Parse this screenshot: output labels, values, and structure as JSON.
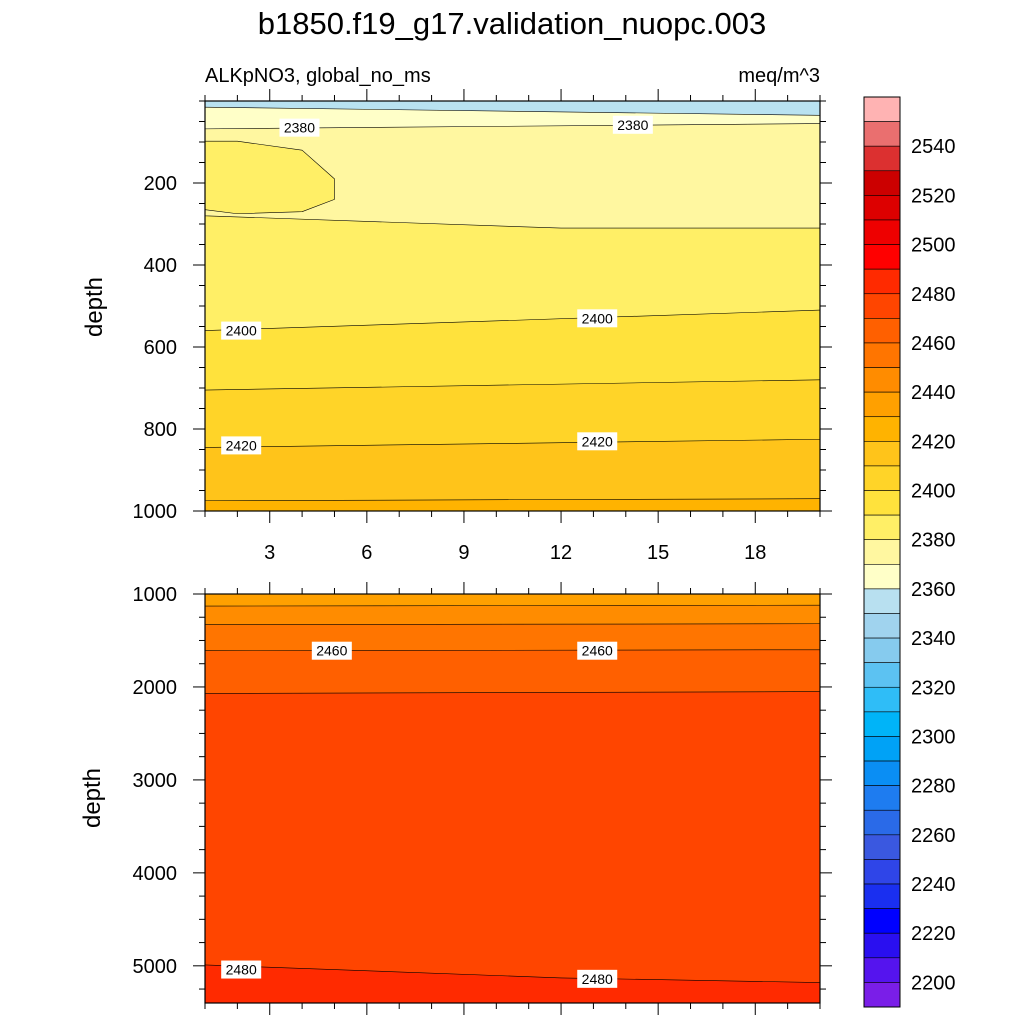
{
  "title": "b1850.f19_g17.validation_nuopc.003",
  "subtitle_left": "ALKpNO3, global_no_ms",
  "subtitle_right": "meq/m^3",
  "chart_data": [
    {
      "type": "heatmap",
      "panel": "upper",
      "ylabel": "depth",
      "xlabel": "",
      "xlim": [
        1,
        20
      ],
      "ylim": [
        1000,
        0
      ],
      "xticks": [
        3,
        6,
        9,
        12,
        15,
        18
      ],
      "yticks": [
        200,
        400,
        600,
        800,
        1000
      ],
      "contour_lines": [
        {
          "level": 2360,
          "x": [
            1,
            20
          ],
          "y": [
            15,
            35
          ]
        },
        {
          "level": 2380,
          "x": [
            1,
            20
          ],
          "y": [
            68,
            55
          ]
        },
        {
          "level": 2390,
          "x": [
            1,
            2,
            4,
            5,
            5,
            4,
            2,
            1,
            1,
            12,
            20
          ],
          "y": [
            98,
            98,
            120,
            190,
            240,
            270,
            275,
            265,
            280,
            310,
            310
          ]
        },
        {
          "level": 2400,
          "x": [
            1,
            20
          ],
          "y": [
            560,
            510
          ]
        },
        {
          "level": 2410,
          "x": [
            1,
            20
          ],
          "y": [
            705,
            680
          ]
        },
        {
          "level": 2420,
          "x": [
            1,
            20
          ],
          "y": [
            845,
            825
          ]
        },
        {
          "level": 2430,
          "x": [
            1,
            20
          ],
          "y": [
            975,
            970
          ]
        }
      ],
      "contour_labels": [
        {
          "text": "2380",
          "x": 3.3,
          "y": 65
        },
        {
          "text": "2380",
          "x": 13.6,
          "y": 58
        },
        {
          "text": "2400",
          "x": 1.5,
          "y": 560
        },
        {
          "text": "2400",
          "x": 12.5,
          "y": 530
        },
        {
          "text": "2420",
          "x": 1.5,
          "y": 840
        },
        {
          "text": "2420",
          "x": 12.5,
          "y": 830
        }
      ]
    },
    {
      "type": "heatmap",
      "panel": "lower",
      "ylabel": "depth",
      "xlabel": "",
      "xlim": [
        1,
        20
      ],
      "ylim": [
        5400,
        1000
      ],
      "yticks": [
        1000,
        2000,
        3000,
        4000,
        5000
      ],
      "contour_lines": [
        {
          "level": 2440,
          "x": [
            1,
            20
          ],
          "y": [
            1130,
            1120
          ]
        },
        {
          "level": 2450,
          "x": [
            1,
            20
          ],
          "y": [
            1330,
            1320
          ]
        },
        {
          "level": 2460,
          "x": [
            1,
            20
          ],
          "y": [
            1610,
            1600
          ]
        },
        {
          "level": 2470,
          "x": [
            1,
            20
          ],
          "y": [
            2070,
            2050
          ]
        },
        {
          "level": 2480,
          "x": [
            1,
            12,
            20
          ],
          "y": [
            4990,
            5130,
            5180
          ]
        }
      ],
      "contour_labels": [
        {
          "text": "2460",
          "x": 4.3,
          "y": 1610
        },
        {
          "text": "2460",
          "x": 12.5,
          "y": 1610
        },
        {
          "text": "2480",
          "x": 1.5,
          "y": 5040
        },
        {
          "text": "2480",
          "x": 12.5,
          "y": 5140
        }
      ]
    }
  ],
  "colorbar": {
    "labels": [
      "2540",
      "2520",
      "2500",
      "2480",
      "2460",
      "2440",
      "2420",
      "2400",
      "2380",
      "2360",
      "2340",
      "2320",
      "2300",
      "2280",
      "2260",
      "2240",
      "2220",
      "2200"
    ],
    "colors_top_to_bottom": [
      "#ffb3b3",
      "#ea6f6f",
      "#dc3030",
      "#cc0000",
      "#dd0000",
      "#ee0000",
      "#ff0000",
      "#ff2a00",
      "#ff4500",
      "#ff6000",
      "#ff7500",
      "#ff8c00",
      "#ffa000",
      "#ffb300",
      "#ffc41a",
      "#ffd428",
      "#ffe23c",
      "#ffef66",
      "#fff7a0",
      "#ffffc8",
      "#b8e0f0",
      "#a0d3ee",
      "#86cbee",
      "#5cc2f2",
      "#2fbdf7",
      "#00b4f8",
      "#00a2f6",
      "#0a8ef4",
      "#1e7cf0",
      "#2a6ae8",
      "#3a58e0",
      "#2f45e8",
      "#1a2ff0",
      "#0000ff",
      "#2a0ff0",
      "#5514ee",
      "#7a1ee8"
    ]
  },
  "colors": {
    "upper_bands": [
      "#b9e2f1",
      "#ffffc8",
      "#fff7a0",
      "#ffef66",
      "#ffe23c",
      "#ffd428",
      "#ffc41a",
      "#ffb300"
    ],
    "lower_bands": [
      "#ffa000",
      "#ff8c00",
      "#ff7500",
      "#ff6000",
      "#ff4500",
      "#ff2a00"
    ]
  }
}
